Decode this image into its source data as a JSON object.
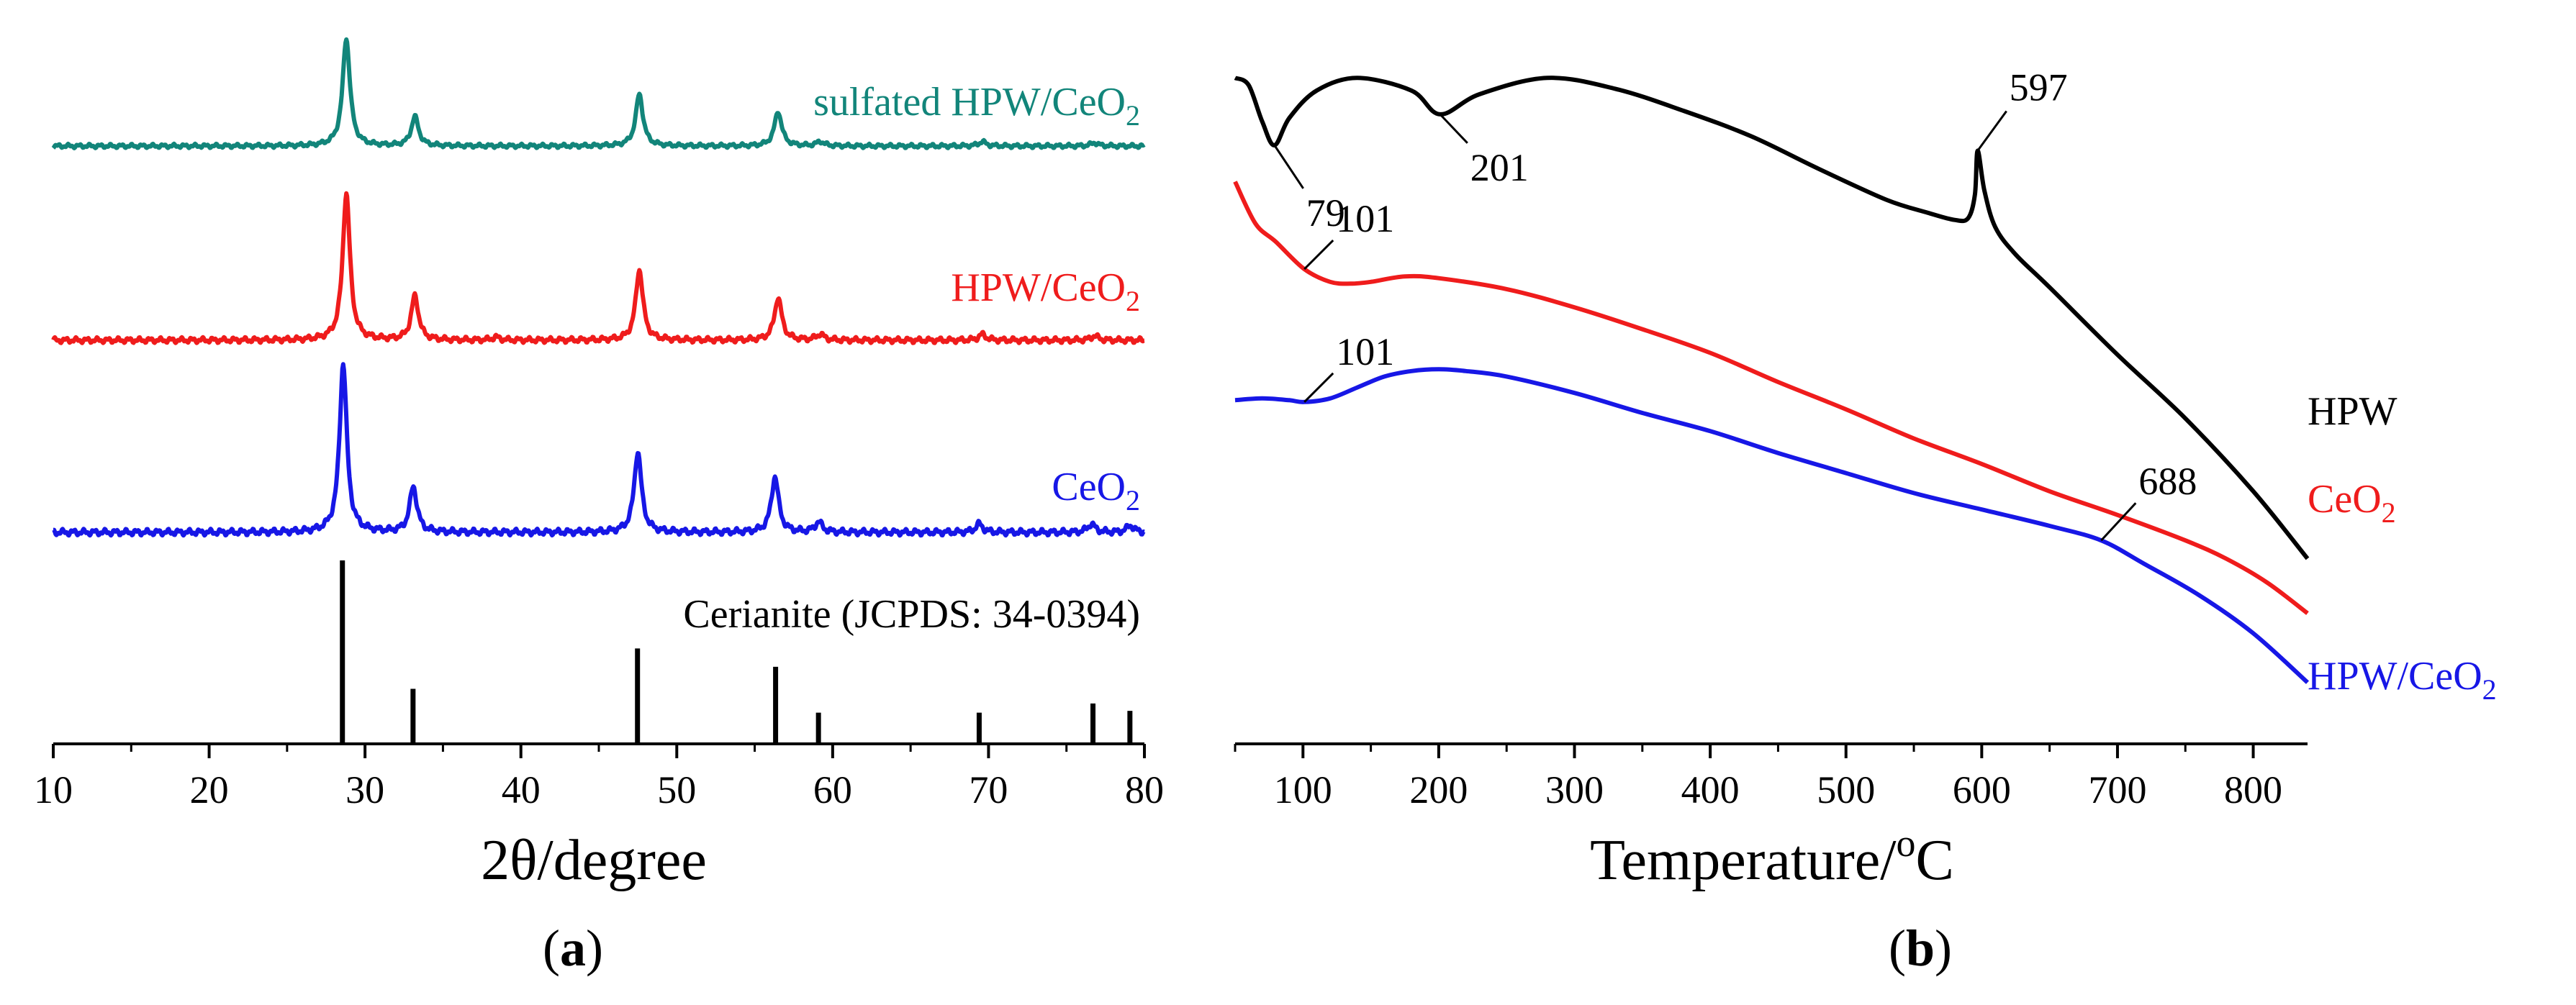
{
  "chart_data": [
    {
      "type": "line",
      "panel_label": "a",
      "title": "",
      "xlabel": "2θ/degree",
      "ylabel": "",
      "xlim": [
        10,
        80
      ],
      "xticks": [
        "10",
        "20",
        "30",
        "40",
        "50",
        "60",
        "70",
        "80"
      ],
      "grid": false,
      "colors": {
        "sulfated": "#12857a",
        "hpw_ceo2": "#ef1c1c",
        "ceo2": "#1717e6",
        "reference": "#000000"
      },
      "series": [
        {
          "name": "sulfated HPW/CeO2",
          "label_main": "sulfated HPW/CeO",
          "label_sub": "2",
          "color_key": "sulfated",
          "peaks": [
            [
              28.8,
              1.0
            ],
            [
              33.2,
              0.27
            ],
            [
              47.6,
              0.48
            ],
            [
              56.5,
              0.32
            ],
            [
              59.2,
              0.04
            ],
            [
              69.6,
              0.04
            ],
            [
              76.8,
              0.03
            ]
          ]
        },
        {
          "name": "HPW/CeO2",
          "label_main": "HPW/CeO",
          "label_sub": "2",
          "color_key": "hpw_ceo2",
          "peaks": [
            [
              28.8,
              1.0
            ],
            [
              33.2,
              0.3
            ],
            [
              38.4,
              0.02
            ],
            [
              47.6,
              0.48
            ],
            [
              56.5,
              0.29
            ],
            [
              59.2,
              0.04
            ],
            [
              69.6,
              0.04
            ],
            [
              76.8,
              0.03
            ]
          ]
        },
        {
          "name": "CeO2",
          "label_main": "CeO",
          "label_sub": "2",
          "color_key": "ceo2",
          "peaks": [
            [
              28.6,
              1.0
            ],
            [
              33.1,
              0.27
            ],
            [
              47.5,
              0.48
            ],
            [
              56.3,
              0.33
            ],
            [
              59.1,
              0.06
            ],
            [
              69.4,
              0.05
            ],
            [
              76.6,
              0.05
            ],
            [
              79.1,
              0.04
            ]
          ]
        }
      ],
      "reference": {
        "name": "Cerianite (JCPDS: 34-0394)",
        "color_key": "reference",
        "lines": [
          [
            28.55,
            100
          ],
          [
            33.08,
            30
          ],
          [
            47.48,
            52
          ],
          [
            56.34,
            42
          ],
          [
            59.09,
            17
          ],
          [
            69.4,
            17
          ],
          [
            76.7,
            22
          ],
          [
            79.07,
            18
          ]
        ]
      }
    },
    {
      "type": "line",
      "panel_label": "b",
      "title": "",
      "xlabel_main": "Temperature/",
      "xlabel_sup": "o",
      "xlabel_unit": "C",
      "ylabel": "",
      "xlim": [
        50,
        840
      ],
      "xticks": [
        "100",
        "200",
        "300",
        "400",
        "500",
        "600",
        "700",
        "800"
      ],
      "grid": false,
      "colors": {
        "hpw": "#000000",
        "ceo2": "#ef1c1c",
        "hpw_ceo2": "#1717e6"
      },
      "series": [
        {
          "name": "HPW",
          "label_main": "HPW",
          "label_sub": "",
          "color_key": "hpw",
          "x": [
            50,
            60,
            70,
            79,
            90,
            110,
            140,
            180,
            201,
            230,
            280,
            330,
            380,
            430,
            480,
            530,
            560,
            580,
            590,
            595,
            597,
            602,
            610,
            625,
            650,
            700,
            750,
            800,
            840
          ],
          "y": [
            3.22,
            3.18,
            2.98,
            2.85,
            3.0,
            3.15,
            3.22,
            3.15,
            3.02,
            3.13,
            3.22,
            3.16,
            3.04,
            2.9,
            2.72,
            2.55,
            2.48,
            2.44,
            2.45,
            2.58,
            2.82,
            2.6,
            2.4,
            2.25,
            2.07,
            1.7,
            1.35,
            0.95,
            0.58
          ]
        },
        {
          "name": "CeO2",
          "label_main": "CeO",
          "label_sub": "2",
          "color_key": "ceo2",
          "x": [
            50,
            65,
            80,
            101,
            120,
            135,
            150,
            175,
            200,
            250,
            300,
            350,
            400,
            450,
            500,
            550,
            600,
            650,
            700,
            750,
            780,
            810,
            840
          ],
          "y": [
            2.65,
            2.42,
            2.32,
            2.17,
            2.1,
            2.09,
            2.1,
            2.13,
            2.12,
            2.06,
            1.96,
            1.84,
            1.71,
            1.55,
            1.4,
            1.24,
            1.1,
            0.95,
            0.82,
            0.68,
            0.58,
            0.45,
            0.28
          ]
        },
        {
          "name": "HPW/CeO2",
          "label_main": "HPW/CeO",
          "label_sub": "2",
          "color_key": "hpw_ceo2",
          "x": [
            50,
            70,
            90,
            101,
            120,
            140,
            160,
            180,
            200,
            220,
            250,
            300,
            350,
            400,
            450,
            500,
            550,
            600,
            650,
            688,
            720,
            760,
            800,
            840
          ],
          "y": [
            1.45,
            1.46,
            1.45,
            1.44,
            1.46,
            1.52,
            1.58,
            1.61,
            1.62,
            1.61,
            1.58,
            1.49,
            1.38,
            1.28,
            1.16,
            1.05,
            0.94,
            0.85,
            0.76,
            0.68,
            0.55,
            0.38,
            0.17,
            -0.1
          ]
        }
      ],
      "annotations": [
        {
          "label": "79",
          "series": 0,
          "x": 79
        },
        {
          "label": "201",
          "series": 0,
          "x": 201
        },
        {
          "label": "597",
          "series": 0,
          "x": 597
        },
        {
          "label": "101",
          "series": 1,
          "x": 101
        },
        {
          "label": "101",
          "series": 2,
          "x": 101
        },
        {
          "label": "688",
          "series": 2,
          "x": 688
        }
      ]
    }
  ]
}
